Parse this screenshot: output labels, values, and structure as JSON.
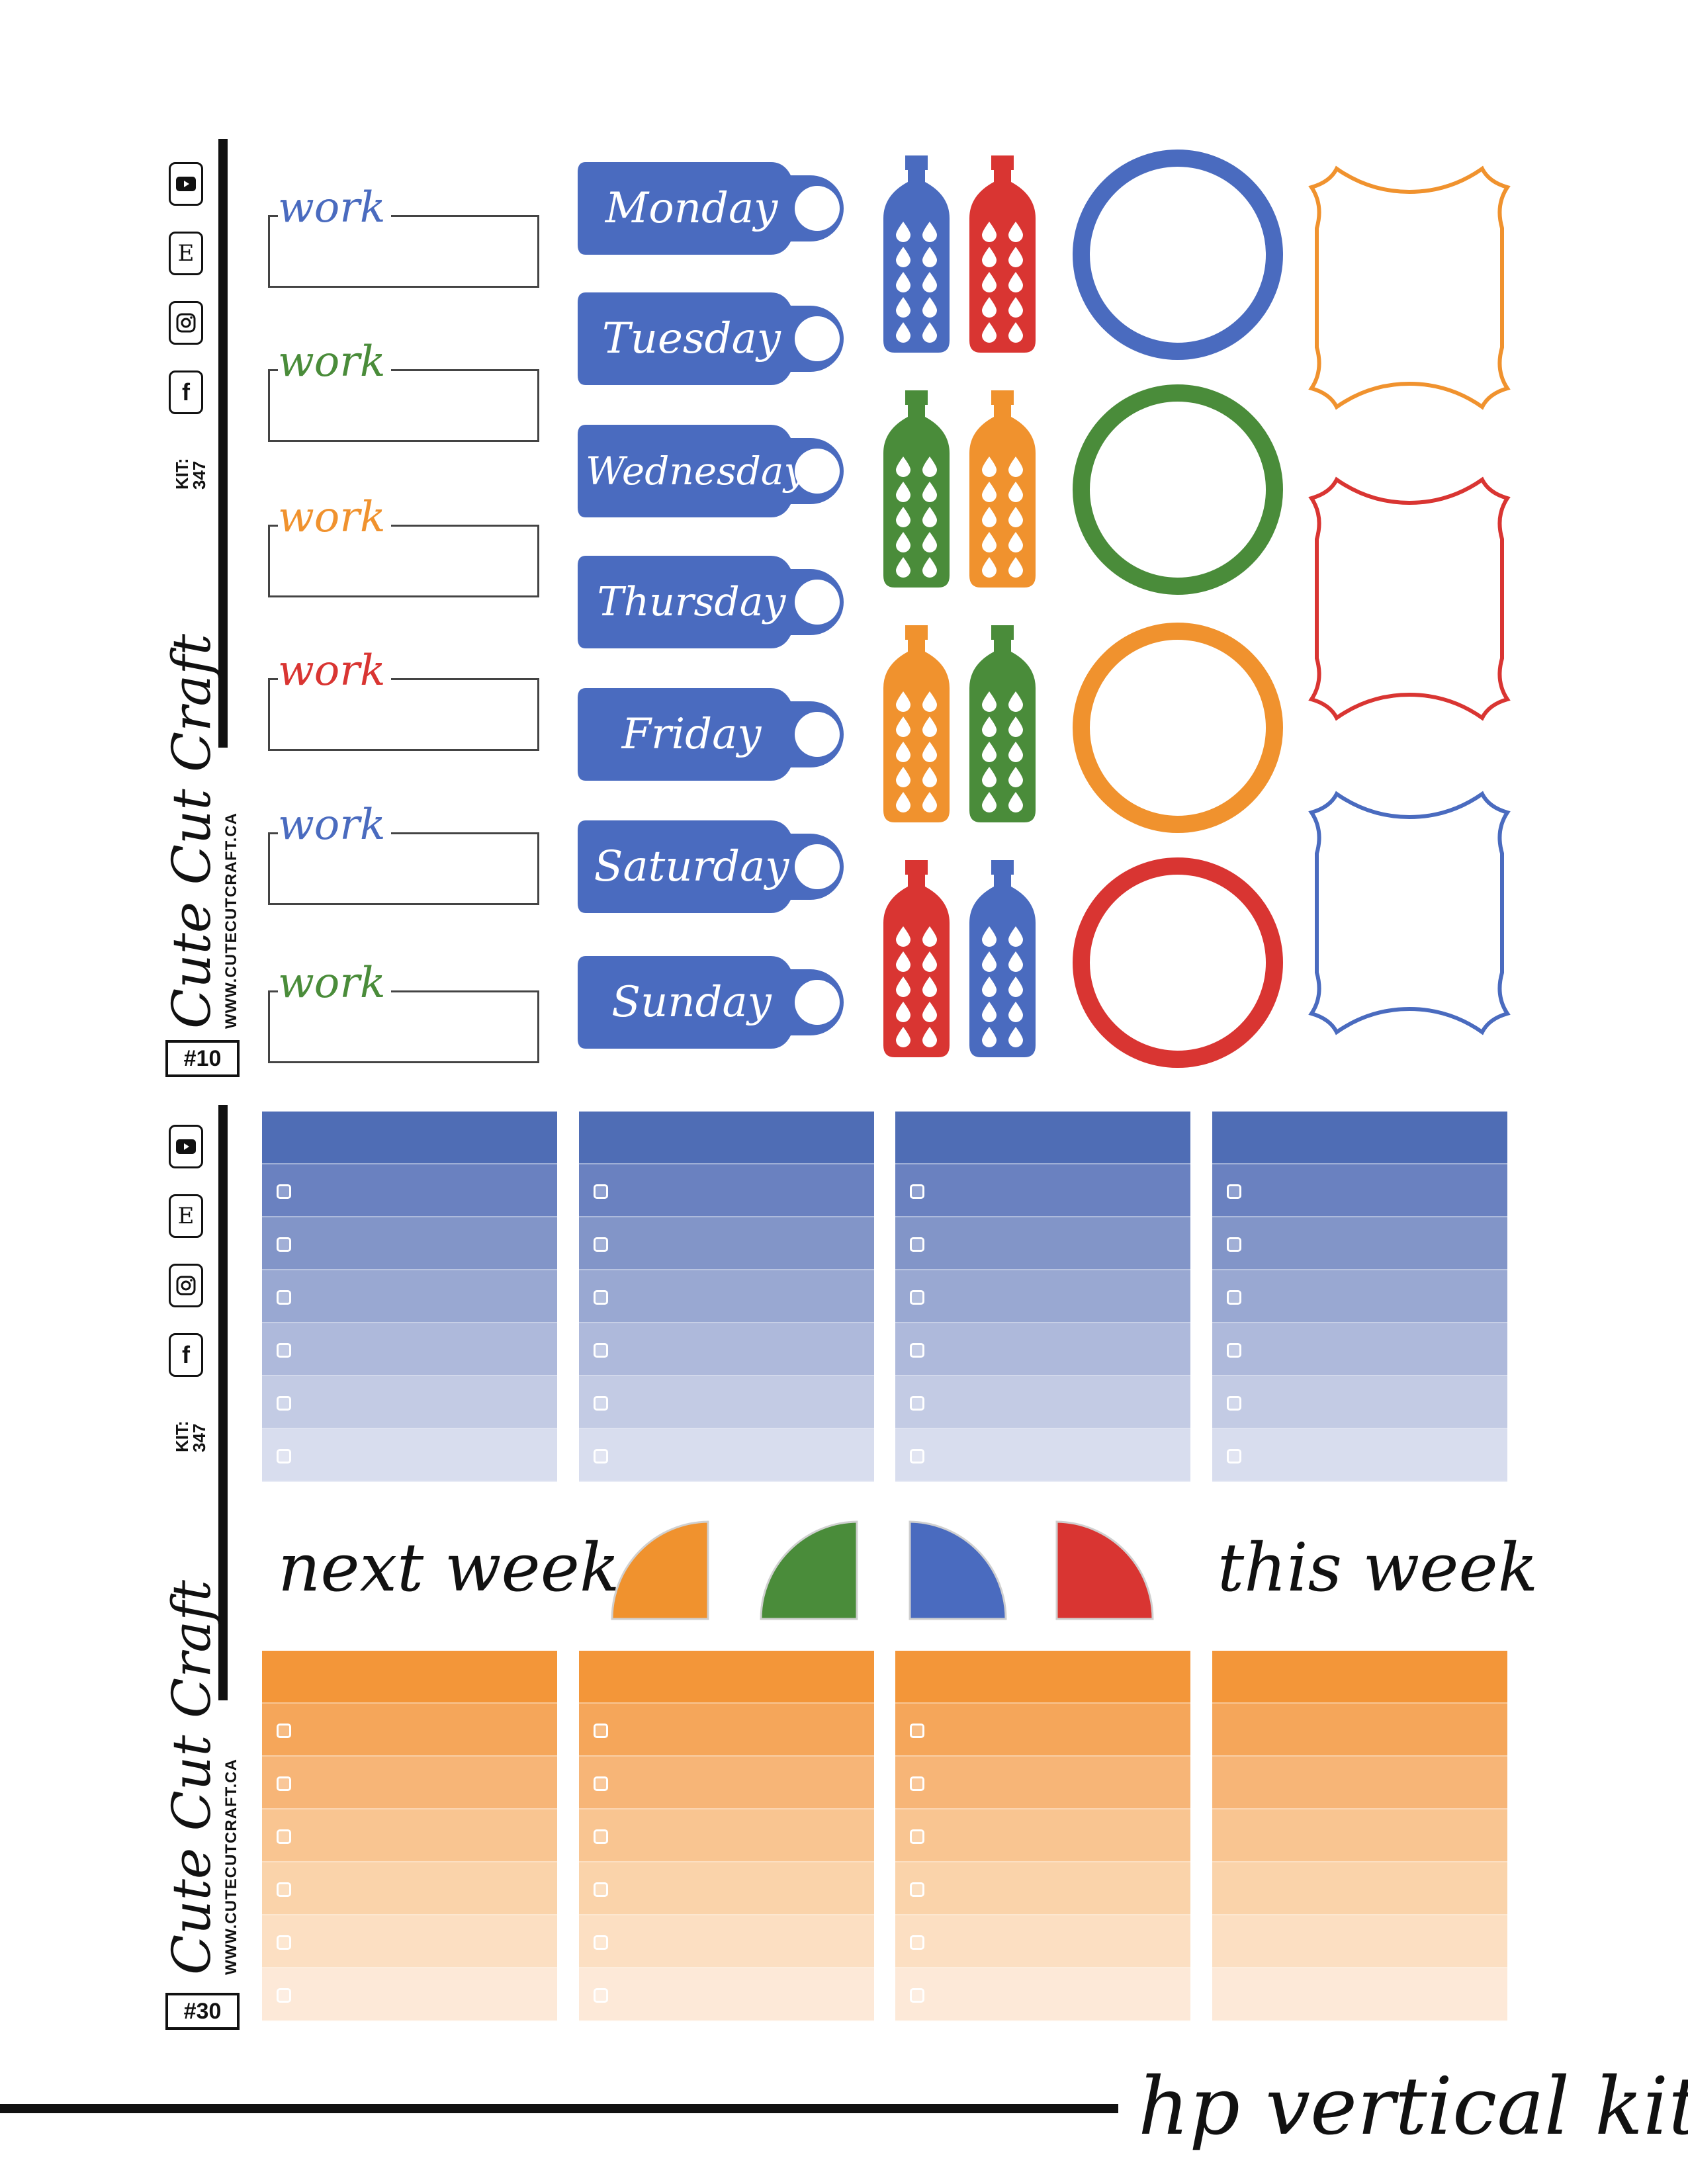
{
  "brand": {
    "name": "Cute Cut Craft",
    "url": "WWW.CUTECUTCRAFT.CA",
    "kit_label": "KIT:\n347",
    "social_icons": [
      "youtube-icon",
      "etsy-icon",
      "instagram-icon",
      "facebook-icon"
    ],
    "etsy_letter": "E",
    "facebook_letter": "f"
  },
  "sheet_top": {
    "number": "#10",
    "work_labels": [
      "work",
      "work",
      "work",
      "work",
      "work",
      "work"
    ],
    "work_colors": [
      "#4a6bbf",
      "#4a8c3a",
      "#f0922e",
      "#d93532",
      "#4a6bbf",
      "#4a8c3a"
    ],
    "days": [
      "Monday",
      "Tuesday",
      "Wednesday",
      "Thursday",
      "Friday",
      "Saturday",
      "Sunday"
    ],
    "bottle_colors": [
      [
        "#4a6bbf",
        "#d93532"
      ],
      [
        "#4a8c3a",
        "#f0922e"
      ],
      [
        "#f0922e",
        "#4a8c3a"
      ],
      [
        "#d93532",
        "#4a6bbf"
      ]
    ],
    "circle_colors": [
      "#4a6bbf",
      "#4a8c3a",
      "#f0922e",
      "#d93532"
    ],
    "frame_colors": [
      "#f0922e",
      "#d93532",
      "#4a6bbf"
    ]
  },
  "sheet_bottom": {
    "number": "#30",
    "next_week": "next week",
    "this_week": "this week",
    "quarter_colors": [
      "#f0922e",
      "#4a8c3a",
      "#4a6bbf",
      "#d93532"
    ],
    "blue_shades": [
      "#4f6db5",
      "#6a81c0",
      "#8295c8",
      "#99a8d2",
      "#aeb9db",
      "#c3cbe4",
      "#d8ddee"
    ],
    "orange_shades": [
      "#f39639",
      "#f5a65a",
      "#f7b577",
      "#f9c591",
      "#fad3aa",
      "#fcdfc2",
      "#fde9d8"
    ]
  },
  "footer": {
    "title": "hp vertical kit"
  }
}
